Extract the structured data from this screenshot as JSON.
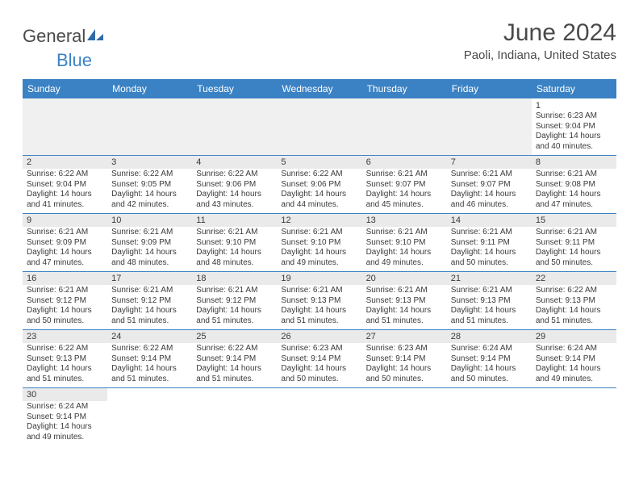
{
  "brand": {
    "name_part1": "General",
    "name_part2": "Blue",
    "logo_color": "#2f6aa8"
  },
  "title": "June 2024",
  "location": "Paoli, Indiana, United States",
  "header_bg": "#3b82c4",
  "day_headers": [
    "Sunday",
    "Monday",
    "Tuesday",
    "Wednesday",
    "Thursday",
    "Friday",
    "Saturday"
  ],
  "weeks": [
    [
      null,
      null,
      null,
      null,
      null,
      null,
      {
        "n": "1",
        "sunrise": "Sunrise: 6:23 AM",
        "sunset": "Sunset: 9:04 PM",
        "day1": "Daylight: 14 hours",
        "day2": "and 40 minutes."
      }
    ],
    [
      {
        "n": "2",
        "sunrise": "Sunrise: 6:22 AM",
        "sunset": "Sunset: 9:04 PM",
        "day1": "Daylight: 14 hours",
        "day2": "and 41 minutes."
      },
      {
        "n": "3",
        "sunrise": "Sunrise: 6:22 AM",
        "sunset": "Sunset: 9:05 PM",
        "day1": "Daylight: 14 hours",
        "day2": "and 42 minutes."
      },
      {
        "n": "4",
        "sunrise": "Sunrise: 6:22 AM",
        "sunset": "Sunset: 9:06 PM",
        "day1": "Daylight: 14 hours",
        "day2": "and 43 minutes."
      },
      {
        "n": "5",
        "sunrise": "Sunrise: 6:22 AM",
        "sunset": "Sunset: 9:06 PM",
        "day1": "Daylight: 14 hours",
        "day2": "and 44 minutes."
      },
      {
        "n": "6",
        "sunrise": "Sunrise: 6:21 AM",
        "sunset": "Sunset: 9:07 PM",
        "day1": "Daylight: 14 hours",
        "day2": "and 45 minutes."
      },
      {
        "n": "7",
        "sunrise": "Sunrise: 6:21 AM",
        "sunset": "Sunset: 9:07 PM",
        "day1": "Daylight: 14 hours",
        "day2": "and 46 minutes."
      },
      {
        "n": "8",
        "sunrise": "Sunrise: 6:21 AM",
        "sunset": "Sunset: 9:08 PM",
        "day1": "Daylight: 14 hours",
        "day2": "and 47 minutes."
      }
    ],
    [
      {
        "n": "9",
        "sunrise": "Sunrise: 6:21 AM",
        "sunset": "Sunset: 9:09 PM",
        "day1": "Daylight: 14 hours",
        "day2": "and 47 minutes."
      },
      {
        "n": "10",
        "sunrise": "Sunrise: 6:21 AM",
        "sunset": "Sunset: 9:09 PM",
        "day1": "Daylight: 14 hours",
        "day2": "and 48 minutes."
      },
      {
        "n": "11",
        "sunrise": "Sunrise: 6:21 AM",
        "sunset": "Sunset: 9:10 PM",
        "day1": "Daylight: 14 hours",
        "day2": "and 48 minutes."
      },
      {
        "n": "12",
        "sunrise": "Sunrise: 6:21 AM",
        "sunset": "Sunset: 9:10 PM",
        "day1": "Daylight: 14 hours",
        "day2": "and 49 minutes."
      },
      {
        "n": "13",
        "sunrise": "Sunrise: 6:21 AM",
        "sunset": "Sunset: 9:10 PM",
        "day1": "Daylight: 14 hours",
        "day2": "and 49 minutes."
      },
      {
        "n": "14",
        "sunrise": "Sunrise: 6:21 AM",
        "sunset": "Sunset: 9:11 PM",
        "day1": "Daylight: 14 hours",
        "day2": "and 50 minutes."
      },
      {
        "n": "15",
        "sunrise": "Sunrise: 6:21 AM",
        "sunset": "Sunset: 9:11 PM",
        "day1": "Daylight: 14 hours",
        "day2": "and 50 minutes."
      }
    ],
    [
      {
        "n": "16",
        "sunrise": "Sunrise: 6:21 AM",
        "sunset": "Sunset: 9:12 PM",
        "day1": "Daylight: 14 hours",
        "day2": "and 50 minutes."
      },
      {
        "n": "17",
        "sunrise": "Sunrise: 6:21 AM",
        "sunset": "Sunset: 9:12 PM",
        "day1": "Daylight: 14 hours",
        "day2": "and 51 minutes."
      },
      {
        "n": "18",
        "sunrise": "Sunrise: 6:21 AM",
        "sunset": "Sunset: 9:12 PM",
        "day1": "Daylight: 14 hours",
        "day2": "and 51 minutes."
      },
      {
        "n": "19",
        "sunrise": "Sunrise: 6:21 AM",
        "sunset": "Sunset: 9:13 PM",
        "day1": "Daylight: 14 hours",
        "day2": "and 51 minutes."
      },
      {
        "n": "20",
        "sunrise": "Sunrise: 6:21 AM",
        "sunset": "Sunset: 9:13 PM",
        "day1": "Daylight: 14 hours",
        "day2": "and 51 minutes."
      },
      {
        "n": "21",
        "sunrise": "Sunrise: 6:21 AM",
        "sunset": "Sunset: 9:13 PM",
        "day1": "Daylight: 14 hours",
        "day2": "and 51 minutes."
      },
      {
        "n": "22",
        "sunrise": "Sunrise: 6:22 AM",
        "sunset": "Sunset: 9:13 PM",
        "day1": "Daylight: 14 hours",
        "day2": "and 51 minutes."
      }
    ],
    [
      {
        "n": "23",
        "sunrise": "Sunrise: 6:22 AM",
        "sunset": "Sunset: 9:13 PM",
        "day1": "Daylight: 14 hours",
        "day2": "and 51 minutes."
      },
      {
        "n": "24",
        "sunrise": "Sunrise: 6:22 AM",
        "sunset": "Sunset: 9:14 PM",
        "day1": "Daylight: 14 hours",
        "day2": "and 51 minutes."
      },
      {
        "n": "25",
        "sunrise": "Sunrise: 6:22 AM",
        "sunset": "Sunset: 9:14 PM",
        "day1": "Daylight: 14 hours",
        "day2": "and 51 minutes."
      },
      {
        "n": "26",
        "sunrise": "Sunrise: 6:23 AM",
        "sunset": "Sunset: 9:14 PM",
        "day1": "Daylight: 14 hours",
        "day2": "and 50 minutes."
      },
      {
        "n": "27",
        "sunrise": "Sunrise: 6:23 AM",
        "sunset": "Sunset: 9:14 PM",
        "day1": "Daylight: 14 hours",
        "day2": "and 50 minutes."
      },
      {
        "n": "28",
        "sunrise": "Sunrise: 6:24 AM",
        "sunset": "Sunset: 9:14 PM",
        "day1": "Daylight: 14 hours",
        "day2": "and 50 minutes."
      },
      {
        "n": "29",
        "sunrise": "Sunrise: 6:24 AM",
        "sunset": "Sunset: 9:14 PM",
        "day1": "Daylight: 14 hours",
        "day2": "and 49 minutes."
      }
    ],
    [
      {
        "n": "30",
        "sunrise": "Sunrise: 6:24 AM",
        "sunset": "Sunset: 9:14 PM",
        "day1": "Daylight: 14 hours",
        "day2": "and 49 minutes."
      },
      null,
      null,
      null,
      null,
      null,
      null
    ]
  ]
}
